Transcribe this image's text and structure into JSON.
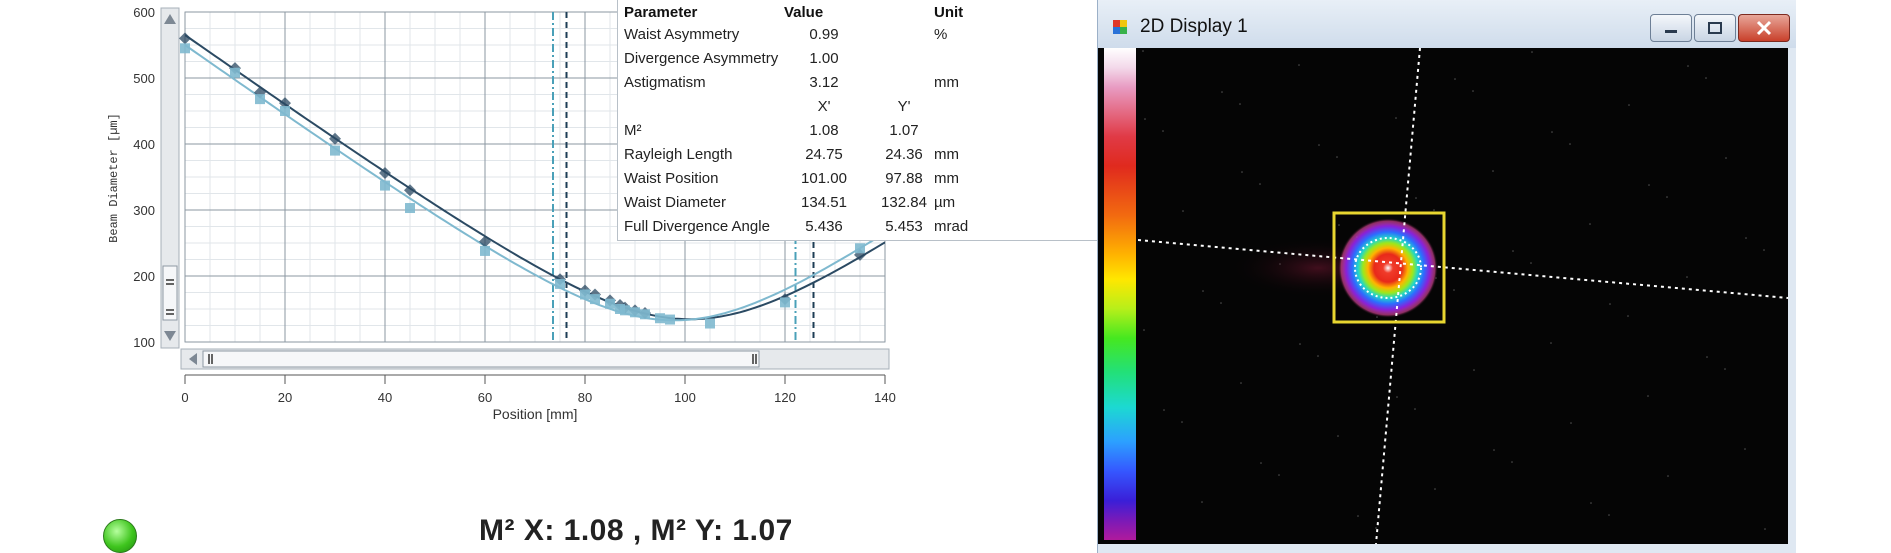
{
  "chart_data": {
    "type": "scatter",
    "xlabel": "Position [mm]",
    "ylabel": "Beam Diameter [µm]",
    "xlim": [
      0,
      140
    ],
    "ylim": [
      100,
      600
    ],
    "x_ticks": [
      "0",
      "20",
      "40",
      "60",
      "80",
      "100",
      "120",
      "140"
    ],
    "y_ticks": [
      "100",
      "200",
      "300",
      "400",
      "500",
      "600"
    ],
    "grid": true,
    "series": [
      {
        "color": "#2b4a63",
        "marker": "diamond",
        "points": [
          [
            0,
            560
          ],
          [
            10,
            515
          ],
          [
            15,
            478
          ],
          [
            20,
            462
          ],
          [
            30,
            408
          ],
          [
            40,
            356
          ],
          [
            45,
            330
          ],
          [
            60,
            252
          ],
          [
            75,
            195
          ],
          [
            80,
            178
          ],
          [
            82,
            172
          ],
          [
            85,
            163
          ],
          [
            87,
            156
          ],
          [
            88,
            152
          ],
          [
            90,
            148
          ],
          [
            92,
            144
          ],
          [
            120,
            165
          ],
          [
            135,
            232
          ]
        ],
        "fit": {
          "waist_position": 101.0,
          "waist_diameter": 134.51,
          "rayleigh_length": 24.75
        }
      },
      {
        "color": "#7fb9cf",
        "marker": "square",
        "points": [
          [
            0,
            545
          ],
          [
            10,
            508
          ],
          [
            15,
            468
          ],
          [
            20,
            450
          ],
          [
            30,
            390
          ],
          [
            40,
            337
          ],
          [
            45,
            303
          ],
          [
            60,
            238
          ],
          [
            75,
            188
          ],
          [
            80,
            172
          ],
          [
            82,
            165
          ],
          [
            85,
            158
          ],
          [
            87,
            150
          ],
          [
            88,
            148
          ],
          [
            90,
            145
          ],
          [
            92,
            142
          ],
          [
            95,
            136
          ],
          [
            97,
            134
          ],
          [
            105,
            128
          ],
          [
            120,
            160
          ],
          [
            135,
            242
          ]
        ],
        "fit": {
          "waist_position": 97.88,
          "waist_diameter": 132.84,
          "rayleigh_length": 24.36
        }
      }
    ],
    "marker_lines": [
      {
        "x": 73.6,
        "color": "#4aa0b8",
        "style": "dashdot"
      },
      {
        "x": 76.3,
        "color": "#1d3d55",
        "style": "dashed"
      },
      {
        "x": 122.1,
        "color": "#4aa0b8",
        "style": "dashdot"
      },
      {
        "x": 125.7,
        "color": "#1d3d55",
        "style": "dashed"
      }
    ]
  },
  "results_table": {
    "headers": {
      "parameter": "Parameter",
      "value": "Value",
      "unit": "Unit"
    },
    "rows": [
      {
        "parameter": "Waist Asymmetry",
        "x": "0.99",
        "y": "",
        "unit": "%"
      },
      {
        "parameter": "Divergence Asymmetry",
        "x": "1.00",
        "y": "",
        "unit": ""
      },
      {
        "parameter": "Astigmatism",
        "x": "3.12",
        "y": "",
        "unit": "mm"
      },
      {
        "parameter": "",
        "x": "X'",
        "y": "Y'",
        "unit": "",
        "is_subheader": true
      },
      {
        "parameter": "M²",
        "x": "1.08",
        "y": "1.07",
        "unit": ""
      },
      {
        "parameter": "Rayleigh Length",
        "x": "24.75",
        "y": "24.36",
        "unit": "mm"
      },
      {
        "parameter": "Waist Position",
        "x": "101.00",
        "y": "97.88",
        "unit": "mm"
      },
      {
        "parameter": "Waist Diameter",
        "x": "134.51",
        "y": "132.84",
        "unit": "µm"
      },
      {
        "parameter": "Full Divergence Angle",
        "x": "5.436",
        "y": "5.453",
        "unit": "mrad"
      }
    ]
  },
  "status": {
    "indicator_color": "#3fc51e",
    "summary": "M² X: 1.08 , M² Y: 1.07"
  },
  "window": {
    "title": "2D Display 1",
    "icon": "app-window-icon",
    "buttons": [
      "minimize-icon",
      "restore-icon",
      "close-icon"
    ]
  },
  "display": {
    "roi_color": "#e8d630",
    "crosshair_color": "#ffffff",
    "colorbar_colors": [
      "#ffffff",
      "#e03a46",
      "#ffb300",
      "#45e820",
      "#1cd9d2",
      "#3557ff",
      "#b01a9c"
    ]
  }
}
